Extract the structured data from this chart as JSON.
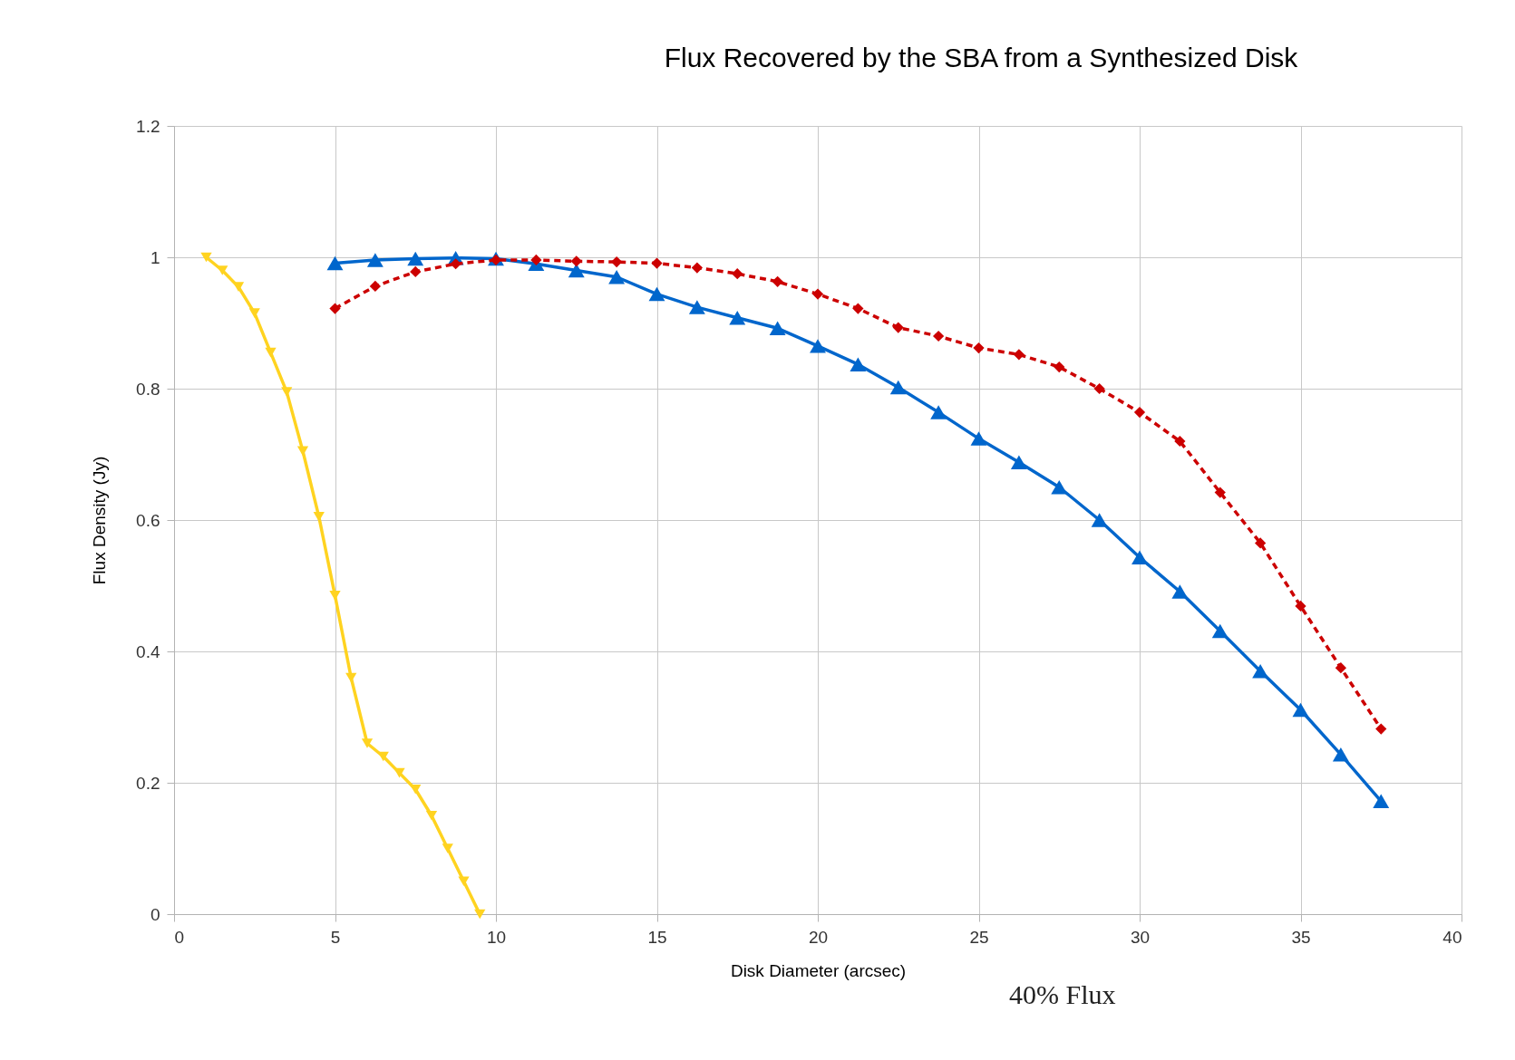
{
  "chart_data": {
    "type": "line",
    "title": "Flux Recovered by the SBA from a Synthesized Disk",
    "xlabel": "Disk Diameter (arcsec)",
    "ylabel": "Flux Density (Jy)",
    "annotations": [
      "40% Flux"
    ],
    "xlim": [
      0,
      40
    ],
    "xticks": [
      0,
      5,
      10,
      15,
      20,
      25,
      30,
      35,
      40
    ],
    "ylim": [
      0,
      1.2
    ],
    "yticks": [
      0,
      0.2,
      0.4,
      0.6,
      0.8,
      1,
      1.2
    ],
    "grid": true,
    "series": [
      {
        "color": "#0066cc",
        "marker": "triangle",
        "line_style": "solid",
        "x": [
          5,
          6.25,
          7.5,
          8.75,
          10,
          11.25,
          12.5,
          13.75,
          15,
          16.25,
          17.5,
          18.75,
          20,
          21.25,
          22.5,
          23.75,
          25,
          26.25,
          27.5,
          28.75,
          30,
          31.25,
          32.5,
          33.75,
          35,
          36.25,
          37.5
        ],
        "values": [
          0.991,
          0.996,
          0.998,
          0.999,
          0.998,
          0.99,
          0.98,
          0.97,
          0.944,
          0.924,
          0.908,
          0.892,
          0.865,
          0.837,
          0.802,
          0.764,
          0.724,
          0.688,
          0.65,
          0.6,
          0.543,
          0.491,
          0.431,
          0.37,
          0.311,
          0.243,
          0.172
        ]
      },
      {
        "color": "#cc0000",
        "marker": "diamond",
        "line_style": "dashed",
        "x": [
          5,
          6.25,
          7.5,
          8.75,
          10,
          11.25,
          12.5,
          13.75,
          15,
          16.25,
          17.5,
          18.75,
          20,
          21.25,
          22.5,
          23.75,
          25,
          26.25,
          27.5,
          28.75,
          30,
          31.25,
          32.5,
          33.75,
          35,
          36.25,
          37.5
        ],
        "values": [
          0.922,
          0.956,
          0.978,
          0.99,
          0.996,
          0.996,
          0.994,
          0.993,
          0.991,
          0.984,
          0.975,
          0.963,
          0.944,
          0.922,
          0.893,
          0.88,
          0.862,
          0.852,
          0.833,
          0.8,
          0.764,
          0.72,
          0.642,
          0.565,
          0.469,
          0.375,
          0.282
        ]
      },
      {
        "color": "#ffd320",
        "marker": "triangle-down",
        "line_style": "solid",
        "x": [
          1,
          1.5,
          2,
          2.5,
          3,
          3.5,
          4,
          4.5,
          5,
          5.5,
          6,
          6.5,
          7,
          7.5,
          8,
          8.5,
          9,
          9.5
        ],
        "values": [
          1.0,
          0.98,
          0.955,
          0.915,
          0.855,
          0.795,
          0.705,
          0.605,
          0.485,
          0.36,
          0.26,
          0.24,
          0.215,
          0.19,
          0.15,
          0.1,
          0.05,
          0.0
        ]
      }
    ]
  }
}
